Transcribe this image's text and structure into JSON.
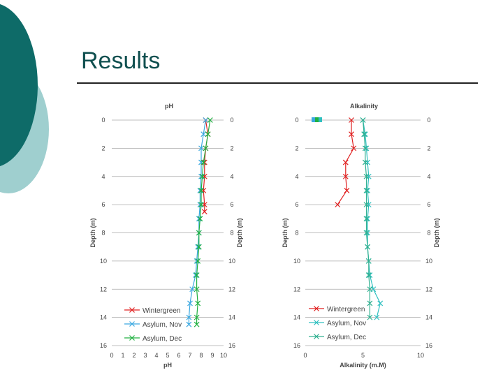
{
  "slide": {
    "title": "Results"
  },
  "colors": {
    "teal_dark": "#0e6b68",
    "teal_light": "#9fcfcf",
    "wintergreen": "#e02020",
    "asylum_nov": "#3aa8e0",
    "asylum_dec": "#20b040",
    "alk_asylum_nov": "#30c0c0",
    "alk_asylum_dec": "#30b090"
  },
  "chart_data": [
    {
      "type": "line",
      "title": "pH",
      "xlabel": "pH",
      "ylabel": "Depth (m)",
      "xlim": [
        0,
        10
      ],
      "ylim": [
        16,
        0
      ],
      "x_ticks": [
        "0",
        "1",
        "2",
        "3",
        "4",
        "5",
        "6",
        "7",
        "8",
        "9",
        "10"
      ],
      "y_ticks": [
        "0",
        "2",
        "4",
        "6",
        "8",
        "10",
        "12",
        "14",
        "16"
      ],
      "grid": "horizontal",
      "legend_position": "bottom-left",
      "series": [
        {
          "name": "Wintergreen",
          "color": "#e02020",
          "points": [
            [
              8.4,
              0
            ],
            [
              8.6,
              1
            ],
            [
              8.4,
              2
            ],
            [
              8.3,
              3
            ],
            [
              8.3,
              4
            ],
            [
              8.2,
              5
            ],
            [
              8.3,
              6
            ],
            [
              8.3,
              6.5
            ]
          ]
        },
        {
          "name": "Asylum, Nov",
          "color": "#3aa8e0",
          "points": [
            [
              8.4,
              0
            ],
            [
              8.2,
              1
            ],
            [
              8.0,
              2
            ],
            [
              8.0,
              3
            ],
            [
              8.0,
              4
            ],
            [
              7.9,
              5
            ],
            [
              7.9,
              6
            ],
            [
              7.8,
              7
            ],
            [
              7.8,
              8
            ],
            [
              7.7,
              9
            ],
            [
              7.6,
              10
            ],
            [
              7.5,
              11
            ],
            [
              7.2,
              12
            ],
            [
              7.0,
              13
            ],
            [
              6.9,
              14
            ],
            [
              6.9,
              14.5
            ]
          ]
        },
        {
          "name": "Asylum, Dec",
          "color": "#20b040",
          "points": [
            [
              8.8,
              0
            ],
            [
              8.6,
              1
            ],
            [
              8.4,
              2
            ],
            [
              8.2,
              3
            ],
            [
              8.1,
              4
            ],
            [
              8.0,
              5
            ],
            [
              8.0,
              6
            ],
            [
              7.9,
              7
            ],
            [
              7.8,
              8
            ],
            [
              7.8,
              9
            ],
            [
              7.7,
              10
            ],
            [
              7.6,
              11
            ],
            [
              7.6,
              12
            ],
            [
              7.7,
              13
            ],
            [
              7.6,
              14
            ],
            [
              7.6,
              14.5
            ]
          ]
        }
      ]
    },
    {
      "type": "line",
      "title": "Alkalinity",
      "xlabel": "Alkalinity (m.M)",
      "ylabel": "Depth (m)",
      "xlim": [
        0,
        10
      ],
      "ylim": [
        16,
        0
      ],
      "x_ticks": [
        "0",
        "5",
        "10"
      ],
      "y_ticks": [
        "0",
        "2",
        "4",
        "6",
        "8",
        "10",
        "12",
        "14",
        "16"
      ],
      "grid": "horizontal",
      "legend_position": "bottom-left",
      "series": [
        {
          "name": "Wintergreen",
          "color": "#e02020",
          "points": [
            [
              4.0,
              0
            ],
            [
              4.0,
              1
            ],
            [
              4.2,
              2
            ],
            [
              3.5,
              3
            ],
            [
              3.5,
              4
            ],
            [
              3.6,
              5
            ],
            [
              2.8,
              6
            ]
          ]
        },
        {
          "name": "Asylum, Nov",
          "color": "#30c0c0",
          "points": [
            [
              5.0,
              0
            ],
            [
              5.2,
              1
            ],
            [
              5.3,
              2
            ],
            [
              5.4,
              3
            ],
            [
              5.5,
              4
            ],
            [
              5.4,
              5
            ],
            [
              5.5,
              6
            ],
            [
              5.4,
              7
            ],
            [
              5.4,
              8
            ],
            [
              5.4,
              9
            ],
            [
              5.5,
              10
            ],
            [
              5.6,
              11
            ],
            [
              5.9,
              12
            ],
            [
              6.5,
              13
            ],
            [
              6.2,
              14
            ]
          ]
        },
        {
          "name": "Asylum, Dec",
          "color": "#30b090",
          "points": [
            [
              5.0,
              0
            ],
            [
              5.1,
              1
            ],
            [
              5.2,
              2
            ],
            [
              5.2,
              3
            ],
            [
              5.3,
              4
            ],
            [
              5.3,
              5
            ],
            [
              5.3,
              6
            ],
            [
              5.3,
              7
            ],
            [
              5.3,
              8
            ],
            [
              5.4,
              9
            ],
            [
              5.5,
              10
            ],
            [
              5.5,
              11
            ],
            [
              5.6,
              12
            ],
            [
              5.6,
              13
            ],
            [
              5.6,
              14
            ]
          ]
        }
      ]
    }
  ]
}
